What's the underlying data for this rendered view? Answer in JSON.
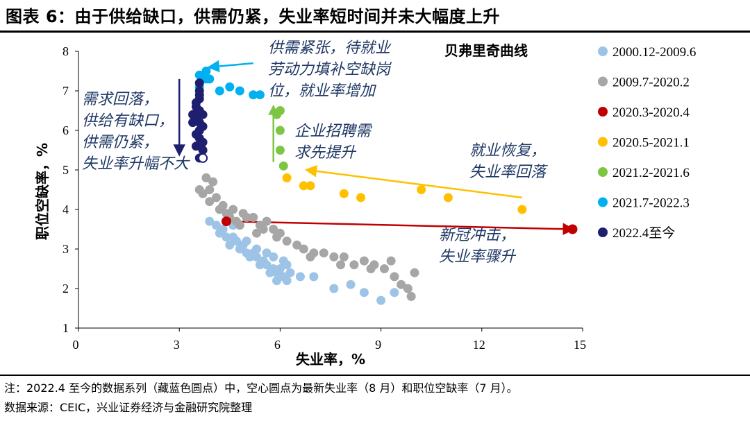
{
  "title": "图表 6：由于供给缺口，供需仍紧，失业率短时间并未大幅度上升",
  "note": "注：2022.4 至今的数据系列（藏蓝色圆点）中，空心圆点为最新失业率（8 月）和职位空缺率（7 月）。",
  "source": "数据来源：CEIC，兴业证券经济与金融研究院整理",
  "chart_data": {
    "type": "scatter",
    "title": "贝弗里奇曲线",
    "xlabel": "失业率，%",
    "ylabel": "职位空缺率，%",
    "xlim": [
      0,
      15
    ],
    "ylim": [
      1,
      8
    ],
    "xticks": [
      0,
      3,
      6,
      9,
      12,
      15
    ],
    "yticks": [
      1,
      2,
      3,
      4,
      5,
      6,
      7,
      8
    ],
    "series": [
      {
        "name": "2000.12-2009.6",
        "color": "#9DC3E6",
        "points": [
          [
            3.9,
            3.7
          ],
          [
            4.1,
            3.6
          ],
          [
            4.3,
            3.5
          ],
          [
            4.2,
            3.4
          ],
          [
            4.4,
            3.3
          ],
          [
            4.6,
            3.3
          ],
          [
            4.5,
            3.1
          ],
          [
            4.7,
            3.2
          ],
          [
            4.9,
            3.1
          ],
          [
            4.8,
            3.0
          ],
          [
            5.0,
            2.9
          ],
          [
            5.2,
            2.9
          ],
          [
            5.1,
            2.8
          ],
          [
            5.3,
            2.8
          ],
          [
            5.5,
            2.7
          ],
          [
            5.4,
            2.6
          ],
          [
            5.6,
            2.6
          ],
          [
            5.8,
            2.5
          ],
          [
            5.7,
            2.4
          ],
          [
            5.9,
            2.4
          ],
          [
            6.0,
            2.5
          ],
          [
            6.1,
            2.3
          ],
          [
            5.9,
            2.2
          ],
          [
            6.2,
            2.6
          ],
          [
            6.3,
            2.4
          ],
          [
            6.6,
            2.3
          ],
          [
            7.0,
            2.3
          ],
          [
            7.6,
            2.0
          ],
          [
            8.1,
            2.1
          ],
          [
            8.5,
            1.9
          ],
          [
            9.0,
            1.7
          ],
          [
            9.4,
            1.9
          ],
          [
            4.6,
            3.6
          ],
          [
            5.0,
            3.2
          ],
          [
            5.6,
            2.9
          ],
          [
            6.1,
            2.7
          ],
          [
            4.4,
            3.9
          ],
          [
            5.3,
            3.0
          ],
          [
            5.8,
            2.8
          ],
          [
            6.2,
            2.2
          ]
        ]
      },
      {
        "name": "2009.7-2020.2",
        "color": "#A6A6A6",
        "points": [
          [
            3.6,
            4.5
          ],
          [
            3.8,
            4.8
          ],
          [
            4.0,
            4.7
          ],
          [
            3.7,
            4.4
          ],
          [
            3.9,
            4.2
          ],
          [
            4.1,
            4.3
          ],
          [
            4.2,
            4.0
          ],
          [
            4.4,
            3.9
          ],
          [
            4.6,
            4.0
          ],
          [
            4.5,
            3.8
          ],
          [
            4.7,
            3.7
          ],
          [
            4.9,
            3.9
          ],
          [
            5.0,
            3.8
          ],
          [
            5.2,
            3.8
          ],
          [
            5.4,
            3.6
          ],
          [
            5.5,
            3.5
          ],
          [
            5.6,
            3.7
          ],
          [
            5.8,
            3.5
          ],
          [
            5.9,
            3.3
          ],
          [
            6.0,
            3.4
          ],
          [
            6.2,
            3.2
          ],
          [
            6.5,
            3.1
          ],
          [
            6.7,
            3.0
          ],
          [
            7.0,
            2.9
          ],
          [
            7.3,
            2.9
          ],
          [
            7.6,
            2.8
          ],
          [
            7.9,
            2.8
          ],
          [
            8.2,
            2.6
          ],
          [
            8.5,
            2.7
          ],
          [
            8.8,
            2.6
          ],
          [
            9.1,
            2.5
          ],
          [
            9.4,
            2.3
          ],
          [
            9.6,
            2.1
          ],
          [
            9.8,
            2.0
          ],
          [
            9.9,
            1.8
          ],
          [
            10.0,
            2.4
          ],
          [
            9.3,
            2.7
          ],
          [
            8.7,
            2.5
          ],
          [
            7.8,
            2.6
          ],
          [
            6.9,
            2.8
          ],
          [
            5.3,
            3.4
          ],
          [
            4.8,
            3.6
          ],
          [
            4.3,
            4.1
          ],
          [
            3.9,
            4.5
          ]
        ]
      },
      {
        "name": "2020.3-2020.4",
        "color": "#C00000",
        "points": [
          [
            4.4,
            3.7
          ],
          [
            14.7,
            3.5
          ]
        ]
      },
      {
        "name": "2020.5-2021.1",
        "color": "#FFC000",
        "points": [
          [
            13.2,
            4.0
          ],
          [
            11.0,
            4.3
          ],
          [
            10.2,
            4.5
          ],
          [
            8.4,
            4.3
          ],
          [
            7.9,
            4.4
          ],
          [
            6.9,
            4.6
          ],
          [
            6.7,
            4.6
          ],
          [
            6.2,
            4.8
          ]
        ]
      },
      {
        "name": "2021.2-2021.6",
        "color": "#7CC644",
        "points": [
          [
            6.1,
            5.1
          ],
          [
            6.0,
            5.5
          ],
          [
            6.0,
            6.0
          ],
          [
            5.9,
            6.4
          ],
          [
            6.0,
            6.5
          ]
        ]
      },
      {
        "name": "2021.7-2022.3",
        "color": "#00B0F0",
        "points": [
          [
            5.4,
            6.9
          ],
          [
            5.2,
            6.9
          ],
          [
            4.8,
            7.0
          ],
          [
            4.5,
            7.1
          ],
          [
            4.2,
            7.0
          ],
          [
            3.9,
            7.3
          ],
          [
            3.8,
            7.3
          ],
          [
            3.6,
            7.4
          ],
          [
            3.6,
            7.1
          ],
          [
            3.8,
            7.5
          ]
        ]
      },
      {
        "name": "2022.4至今",
        "color": "#1F1F70",
        "points": [
          [
            3.6,
            7.2
          ],
          [
            3.6,
            6.9
          ],
          [
            3.6,
            7.0
          ],
          [
            3.6,
            6.8
          ],
          [
            3.5,
            6.6
          ],
          [
            3.6,
            6.5
          ],
          [
            3.7,
            6.4
          ],
          [
            3.5,
            6.3
          ],
          [
            3.6,
            6.2
          ],
          [
            3.4,
            6.2
          ],
          [
            3.7,
            6.1
          ],
          [
            3.6,
            6.0
          ],
          [
            3.5,
            5.9
          ],
          [
            3.6,
            5.8
          ],
          [
            3.7,
            5.7
          ],
          [
            3.5,
            5.6
          ],
          [
            3.7,
            5.5
          ],
          [
            3.6,
            5.3
          ],
          [
            3.4,
            6.4
          ],
          [
            3.5,
            6.7
          ]
        ],
        "hollow": [
          [
            3.7,
            5.3
          ]
        ]
      }
    ],
    "annotations": [
      {
        "text": "供需紧张，待就业|劳动力填补空缺岗|位，就业率增加",
        "color": "#1F3864"
      },
      {
        "text": "需求回落，|供给有缺口，|供需仍紧，|失业率升幅不大",
        "color": "#1F3864"
      },
      {
        "text": "企业招聘需|求先提升",
        "color": "#1F3864"
      },
      {
        "text": "就业恢复，|失业率回落",
        "color": "#1F3864"
      },
      {
        "text": "新冠冲击，|失业率骤升",
        "color": "#1F3864"
      }
    ],
    "arrows": [
      {
        "from": [
          4.4,
          3.7
        ],
        "to": [
          14.7,
          3.5
        ],
        "color": "#C00000"
      },
      {
        "from": [
          13.2,
          4.3
        ],
        "to": [
          6.8,
          5.0
        ],
        "color": "#FFC000"
      },
      {
        "from": [
          5.8,
          5.2
        ],
        "to": [
          5.8,
          6.6
        ],
        "color": "#7CC644"
      },
      {
        "from": [
          5.2,
          7.7
        ],
        "to": [
          3.9,
          7.6
        ],
        "color": "#00B0F0"
      },
      {
        "from": [
          3.0,
          7.3
        ],
        "to": [
          3.0,
          5.4
        ],
        "color": "#1F1F70"
      }
    ]
  }
}
